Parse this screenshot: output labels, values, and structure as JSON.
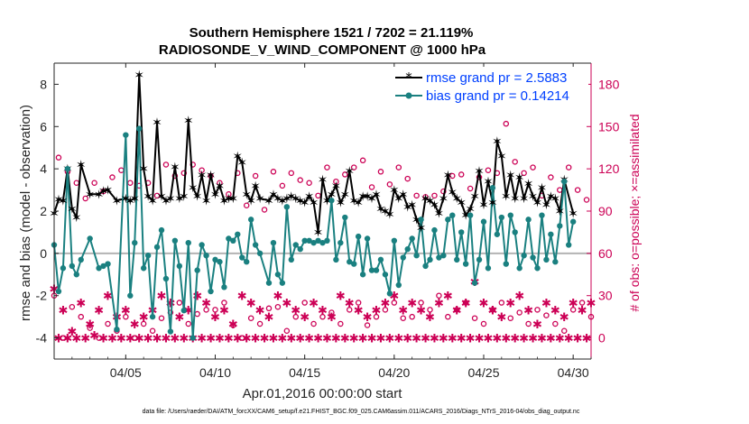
{
  "chart_data": {
    "type": "line",
    "title": "Southern Hemisphere 1521 / 7202 = 21.119%",
    "subtitle": "RADIOSONDE_V_WIND_COMPONENT @ 1000 hPa",
    "xlabel": "Apr.01,2016 00:00:00 start",
    "ylabel": "rmse and bias (model - observation)",
    "y2label": "# of obs: o=possible; ×=assimilated",
    "footer": "data file: /Users/raeder/DAI/ATM_forcXX/CAM6_setup/f.e21.FHIST_BGC.f09_025.CAM6assim.011/ACARS_2016/Diags_NTrS_2016-04/obs_diag_output.nc",
    "xlim": [
      1,
      31
    ],
    "ylim": [
      -5,
      9
    ],
    "y2lim": [
      -15,
      195
    ],
    "x_ticks": [
      {
        "value": 5,
        "label": "04/05"
      },
      {
        "value": 10,
        "label": "04/10"
      },
      {
        "value": 15,
        "label": "04/15"
      },
      {
        "value": 20,
        "label": "04/20"
      },
      {
        "value": 25,
        "label": "04/25"
      },
      {
        "value": 30,
        "label": "04/30"
      }
    ],
    "y_ticks": [
      {
        "value": -4,
        "label": "-4"
      },
      {
        "value": -2,
        "label": "-2"
      },
      {
        "value": 0,
        "label": "0"
      },
      {
        "value": 2,
        "label": "2"
      },
      {
        "value": 4,
        "label": "4"
      },
      {
        "value": 6,
        "label": "6"
      },
      {
        "value": 8,
        "label": "8"
      }
    ],
    "y2_ticks": [
      {
        "value": 0,
        "label": "0"
      },
      {
        "value": 30,
        "label": "30"
      },
      {
        "value": 60,
        "label": "60"
      },
      {
        "value": 90,
        "label": "90"
      },
      {
        "value": 120,
        "label": "120"
      },
      {
        "value": 150,
        "label": "150"
      },
      {
        "value": 180,
        "label": "180"
      }
    ],
    "series": [
      {
        "name": "rmse grand pr = 2.5883",
        "color": "#000000",
        "marker": "star",
        "points": [
          [
            1.0,
            1.9
          ],
          [
            1.25,
            2.55
          ],
          [
            1.5,
            2.5
          ],
          [
            1.75,
            4.0
          ],
          [
            2.0,
            2.1
          ],
          [
            2.25,
            1.7
          ],
          [
            2.5,
            4.2
          ],
          [
            3.0,
            2.8
          ],
          [
            3.5,
            2.8
          ],
          [
            3.75,
            2.95
          ],
          [
            4.0,
            3.0
          ],
          [
            4.5,
            2.5
          ],
          [
            5.0,
            2.6
          ],
          [
            5.25,
            2.5
          ],
          [
            5.5,
            2.6
          ],
          [
            5.75,
            8.45
          ],
          [
            6.0,
            4.0
          ],
          [
            6.25,
            2.7
          ],
          [
            6.5,
            2.5
          ],
          [
            6.75,
            6.2
          ],
          [
            7.0,
            2.7
          ],
          [
            7.25,
            2.5
          ],
          [
            7.5,
            2.6
          ],
          [
            7.75,
            4.1
          ],
          [
            8.0,
            2.6
          ],
          [
            8.25,
            2.7
          ],
          [
            8.5,
            6.3
          ],
          [
            8.75,
            3.1
          ],
          [
            9.0,
            2.7
          ],
          [
            9.25,
            3.7
          ],
          [
            9.5,
            2.5
          ],
          [
            9.75,
            3.7
          ],
          [
            10.0,
            2.8
          ],
          [
            10.25,
            3.2
          ],
          [
            10.5,
            2.5
          ],
          [
            10.75,
            2.6
          ],
          [
            11.0,
            2.6
          ],
          [
            11.25,
            4.6
          ],
          [
            11.5,
            4.3
          ],
          [
            11.75,
            2.8
          ],
          [
            12.0,
            2.5
          ],
          [
            12.25,
            3.2
          ],
          [
            12.5,
            2.6
          ],
          [
            13.0,
            2.5
          ],
          [
            13.25,
            2.8
          ],
          [
            13.5,
            2.6
          ],
          [
            13.75,
            2.5
          ],
          [
            14.0,
            2.6
          ],
          [
            14.25,
            2.7
          ],
          [
            14.5,
            2.6
          ],
          [
            14.75,
            2.5
          ],
          [
            15.0,
            2.4
          ],
          [
            15.25,
            2.7
          ],
          [
            15.5,
            2.4
          ],
          [
            15.75,
            1.0
          ],
          [
            16.0,
            3.5
          ],
          [
            16.25,
            2.5
          ],
          [
            16.5,
            2.8
          ],
          [
            16.75,
            3.2
          ],
          [
            17.0,
            2.4
          ],
          [
            17.25,
            2.8
          ],
          [
            17.5,
            3.9
          ],
          [
            17.75,
            2.5
          ],
          [
            18.0,
            2.4
          ],
          [
            18.25,
            2.7
          ],
          [
            18.5,
            2.7
          ],
          [
            18.75,
            2.6
          ],
          [
            19.0,
            2.8
          ],
          [
            19.25,
            2.1
          ],
          [
            19.5,
            2.0
          ],
          [
            19.75,
            1.85
          ],
          [
            20.0,
            3.0
          ],
          [
            20.25,
            2.6
          ],
          [
            20.5,
            2.8
          ],
          [
            20.75,
            2.2
          ],
          [
            21.0,
            2.3
          ],
          [
            21.25,
            1.6
          ],
          [
            21.5,
            1.2
          ],
          [
            21.75,
            2.6
          ],
          [
            22.0,
            2.5
          ],
          [
            22.25,
            2.3
          ],
          [
            22.5,
            1.9
          ],
          [
            22.75,
            2.6
          ],
          [
            23.0,
            3.7
          ],
          [
            23.25,
            2.9
          ],
          [
            23.5,
            2.6
          ],
          [
            23.75,
            2.4
          ],
          [
            24.0,
            1.8
          ],
          [
            24.25,
            2.1
          ],
          [
            24.5,
            2.7
          ],
          [
            24.75,
            3.9
          ],
          [
            25.0,
            2.3
          ],
          [
            25.25,
            3.4
          ],
          [
            25.5,
            2.4
          ],
          [
            25.75,
            5.3
          ],
          [
            26.0,
            4.6
          ],
          [
            26.25,
            2.7
          ],
          [
            26.5,
            3.7
          ],
          [
            26.75,
            2.6
          ],
          [
            27.0,
            3.6
          ],
          [
            27.25,
            2.6
          ],
          [
            27.5,
            3.3
          ],
          [
            27.75,
            2.7
          ],
          [
            28.0,
            2.4
          ],
          [
            28.25,
            3.1
          ],
          [
            28.5,
            2.3
          ],
          [
            28.75,
            2.7
          ],
          [
            29.0,
            2.6
          ],
          [
            29.25,
            2.0
          ],
          [
            29.5,
            3.5
          ],
          [
            30.0,
            1.9
          ]
        ]
      },
      {
        "name": "bias grand pr = 0.14214",
        "color": "#1a8080",
        "marker": "dot",
        "points": [
          [
            1.0,
            0.4
          ],
          [
            1.25,
            -1.8
          ],
          [
            1.5,
            -0.7
          ],
          [
            1.75,
            4.0
          ],
          [
            2.0,
            -0.6
          ],
          [
            2.25,
            -1.0
          ],
          [
            2.5,
            -0.3
          ],
          [
            3.0,
            0.7
          ],
          [
            3.5,
            -0.7
          ],
          [
            3.75,
            -0.6
          ],
          [
            4.0,
            -0.5
          ],
          [
            4.5,
            -3.6
          ],
          [
            5.0,
            5.6
          ],
          [
            5.25,
            -2.0
          ],
          [
            5.5,
            0.5
          ],
          [
            5.75,
            5.9
          ],
          [
            6.0,
            -0.7
          ],
          [
            6.25,
            -0.1
          ],
          [
            6.5,
            -3.0
          ],
          [
            6.75,
            0.3
          ],
          [
            7.0,
            1.1
          ],
          [
            7.25,
            -1.2
          ],
          [
            7.5,
            -3.7
          ],
          [
            7.75,
            0.6
          ],
          [
            8.0,
            -0.6
          ],
          [
            8.25,
            -2.7
          ],
          [
            8.5,
            0.5
          ],
          [
            8.75,
            -4.0
          ],
          [
            9.0,
            -0.8
          ],
          [
            9.25,
            0.4
          ],
          [
            9.5,
            -0.1
          ],
          [
            9.75,
            -1.8
          ],
          [
            10.0,
            -0.3
          ],
          [
            10.25,
            -0.4
          ],
          [
            10.5,
            -1.6
          ],
          [
            10.75,
            0.7
          ],
          [
            11.0,
            0.6
          ],
          [
            11.25,
            0.9
          ],
          [
            11.5,
            -0.2
          ],
          [
            11.75,
            -0.4
          ],
          [
            12.0,
            1.6
          ],
          [
            12.25,
            0.4
          ],
          [
            12.5,
            0.0
          ],
          [
            13.0,
            -1.4
          ],
          [
            13.25,
            0.5
          ],
          [
            13.5,
            -1.0
          ],
          [
            13.75,
            -1.4
          ],
          [
            14.0,
            2.2
          ],
          [
            14.25,
            -0.3
          ],
          [
            14.5,
            0.4
          ],
          [
            14.75,
            0.2
          ],
          [
            15.0,
            0.6
          ],
          [
            15.25,
            0.6
          ],
          [
            15.5,
            0.5
          ],
          [
            15.75,
            0.6
          ],
          [
            16.0,
            0.5
          ],
          [
            16.25,
            0.6
          ],
          [
            16.5,
            2.5
          ],
          [
            16.75,
            -0.3
          ],
          [
            17.0,
            0.5
          ],
          [
            17.25,
            1.7
          ],
          [
            17.5,
            -0.4
          ],
          [
            17.75,
            -0.5
          ],
          [
            18.0,
            0.8
          ],
          [
            18.25,
            -1.0
          ],
          [
            18.5,
            0.7
          ],
          [
            18.75,
            -0.8
          ],
          [
            19.0,
            -0.8
          ],
          [
            19.25,
            -0.3
          ],
          [
            19.5,
            -1.0
          ],
          [
            19.75,
            -1.9
          ],
          [
            20.0,
            0.6
          ],
          [
            20.25,
            -1.5
          ],
          [
            20.5,
            -0.2
          ],
          [
            20.75,
            0.2
          ],
          [
            21.0,
            0.7
          ],
          [
            21.25,
            -0.1
          ],
          [
            21.5,
            1.6
          ],
          [
            21.75,
            -0.6
          ],
          [
            22.0,
            -0.3
          ],
          [
            22.25,
            1.1
          ],
          [
            22.5,
            -0.2
          ],
          [
            22.75,
            -0.1
          ],
          [
            23.0,
            1.6
          ],
          [
            23.25,
            1.8
          ],
          [
            23.5,
            -0.3
          ],
          [
            23.75,
            1.0
          ],
          [
            24.0,
            -0.5
          ],
          [
            24.25,
            1.8
          ],
          [
            24.5,
            -1.4
          ],
          [
            24.75,
            -0.3
          ],
          [
            25.0,
            1.5
          ],
          [
            25.25,
            -0.7
          ],
          [
            25.5,
            3.1
          ],
          [
            25.75,
            0.9
          ],
          [
            26.0,
            1.7
          ],
          [
            26.25,
            -0.5
          ],
          [
            26.5,
            1.8
          ],
          [
            26.75,
            1.0
          ],
          [
            27.0,
            -0.7
          ],
          [
            27.25,
            -0.1
          ],
          [
            27.5,
            1.6
          ],
          [
            27.75,
            -0.2
          ],
          [
            28.0,
            -0.7
          ],
          [
            28.25,
            1.8
          ],
          [
            28.5,
            -0.3
          ],
          [
            28.75,
            0.9
          ],
          [
            29.0,
            -0.4
          ],
          [
            29.25,
            1.3
          ],
          [
            29.5,
            3.4
          ],
          [
            29.75,
            0.4
          ],
          [
            30.0,
            1.5
          ]
        ]
      }
    ],
    "possible_obs": {
      "name": "possible",
      "marker": "circle",
      "color": "#cc0055",
      "values_y2": [
        30,
        128,
        0,
        118,
        22,
        110,
        15,
        99,
        7,
        110,
        0,
        104,
        10,
        114,
        5,
        119,
        15,
        110,
        0,
        108,
        10,
        110,
        5,
        101,
        14,
        123,
        18,
        115,
        25,
        117,
        10,
        123,
        17,
        119,
        20,
        115,
        20,
        110,
        25,
        102,
        9,
        117,
        0,
        94,
        14,
        115,
        10,
        91,
        21,
        118,
        22,
        108,
        5,
        117,
        15,
        112,
        25,
        110,
        10,
        101,
        15,
        121,
        18,
        111,
        10,
        116,
        20,
        121,
        25,
        126,
        9,
        107,
        15,
        118,
        20,
        109,
        25,
        121,
        14,
        113,
        15,
        101,
        25,
        100,
        20,
        101,
        30,
        104,
        15,
        115,
        20,
        116,
        25,
        106,
        14,
        114,
        10,
        119,
        20,
        117,
        25,
        152,
        14,
        125,
        18,
        117,
        10,
        121,
        20,
        101,
        16,
        114,
        10,
        105,
        5,
        121,
        20,
        105,
        25,
        98,
        15,
        116
      ],
      "start_x": 1.0,
      "step_x": 0.25
    },
    "assimilated_obs": {
      "name": "assimilated",
      "marker": "asterisk",
      "color": "#cc0055",
      "values_y2": [
        35,
        0,
        20,
        0,
        5,
        0,
        25,
        0,
        10,
        2,
        20,
        0,
        30,
        0,
        15,
        0,
        20,
        0,
        10,
        0,
        15,
        0,
        20,
        0,
        30,
        0,
        25,
        0,
        15,
        0,
        20,
        0,
        30,
        0,
        25,
        0,
        15,
        0,
        20,
        0,
        10,
        0,
        30,
        0,
        25,
        0,
        20,
        0,
        15,
        0,
        30,
        0,
        25,
        0,
        20,
        0,
        15,
        0,
        25,
        0,
        20,
        0,
        15,
        0,
        30,
        0,
        25,
        0,
        20,
        0,
        15,
        0,
        20,
        0,
        25,
        0,
        30,
        0,
        20,
        0,
        25,
        0,
        20,
        0,
        15,
        0,
        25,
        0,
        30,
        0,
        20,
        0,
        25,
        0,
        40,
        0,
        25,
        0,
        20,
        0,
        15,
        0,
        25,
        0,
        30,
        0,
        20,
        0,
        10,
        0,
        25,
        0,
        20,
        0,
        15,
        0,
        25,
        0,
        20,
        0,
        25,
        0
      ],
      "start_x": 1.0,
      "step_x": 0.25
    }
  },
  "colors": {
    "rmse": "#000000",
    "bias": "#1a8080",
    "obs": "#cc0055",
    "zero_line": "#b3b3b3",
    "legend_text": "#0040ff"
  }
}
